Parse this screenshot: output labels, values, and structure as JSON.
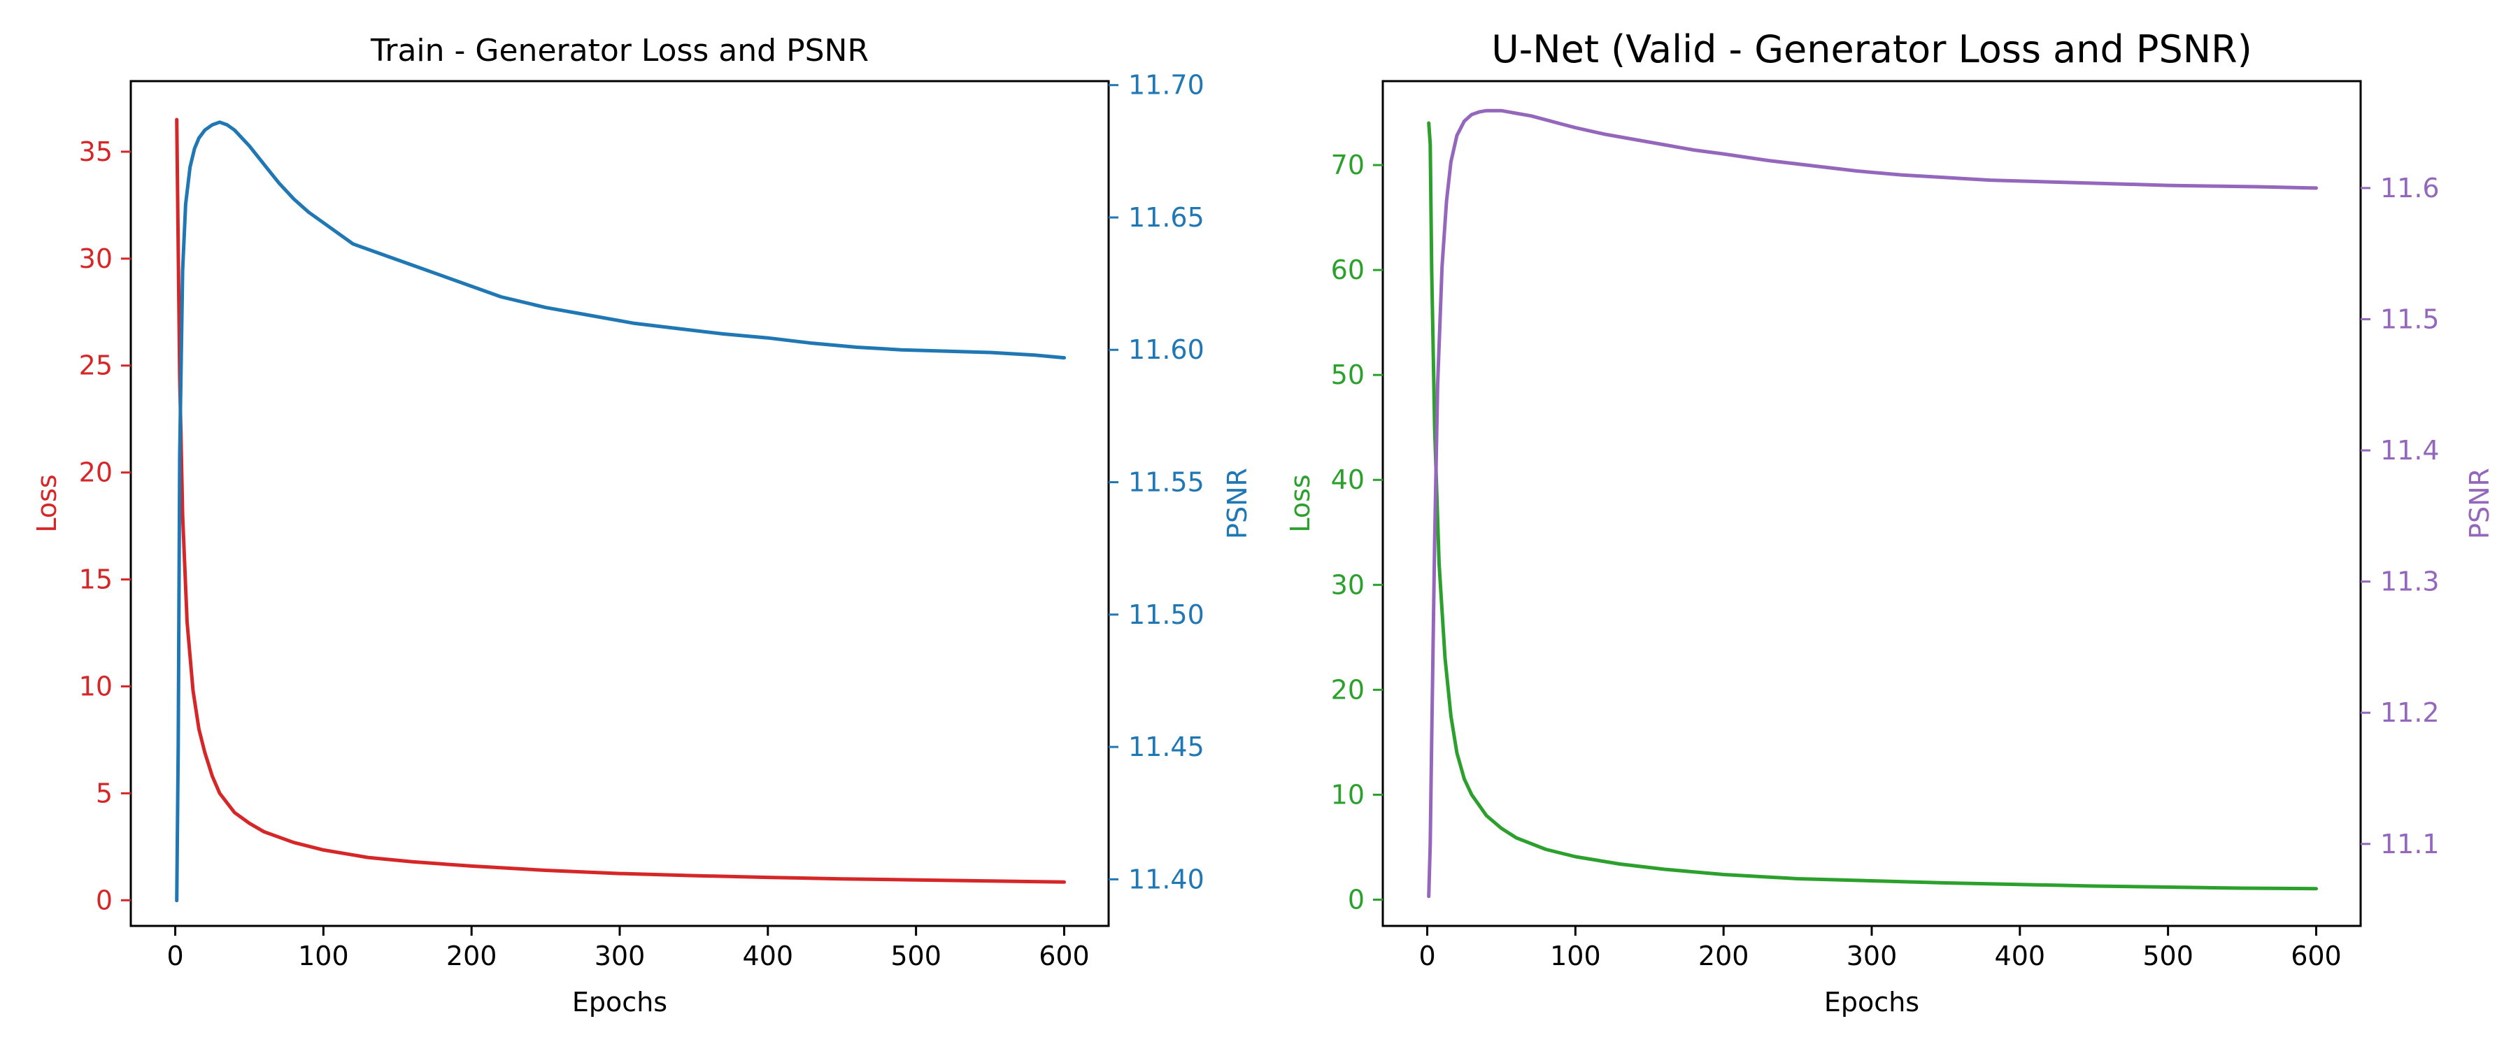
{
  "chart_data": [
    {
      "type": "line",
      "title": "Train - Generator Loss and PSNR",
      "xlabel": "Epochs",
      "ylabel": "Loss",
      "y2label": "PSNR",
      "xlim": [
        -30,
        630
      ],
      "ylim": [
        -1.2,
        38.3
      ],
      "y2lim": [
        11.3824,
        11.7015
      ],
      "xticks": [
        0,
        100,
        200,
        300,
        400,
        500,
        600
      ],
      "yticks": [
        0,
        5,
        10,
        15,
        20,
        25,
        30,
        35
      ],
      "y2ticks": [
        11.4,
        11.45,
        11.5,
        11.55,
        11.6,
        11.65,
        11.7
      ],
      "y2tick_labels": [
        "11.40",
        "11.45",
        "11.50",
        "11.55",
        "11.60",
        "11.65",
        "11.70"
      ],
      "left_color": "#d62728",
      "right_color": "#1f77b4",
      "series": [
        {
          "axis": "left",
          "color": "#d62728",
          "x": [
            1,
            3,
            5,
            8,
            12,
            16,
            20,
            25,
            30,
            40,
            50,
            60,
            80,
            100,
            130,
            160,
            200,
            250,
            300,
            350,
            400,
            450,
            500,
            550,
            600
          ],
          "y": [
            36.5,
            24.5,
            18.0,
            13.0,
            9.8,
            8.0,
            6.9,
            5.8,
            5.0,
            4.1,
            3.6,
            3.2,
            2.7,
            2.35,
            2.0,
            1.8,
            1.6,
            1.4,
            1.25,
            1.15,
            1.07,
            1.0,
            0.95,
            0.9,
            0.85
          ]
        },
        {
          "axis": "right",
          "color": "#1f77b4",
          "x": [
            1,
            2,
            3,
            5,
            7,
            10,
            13,
            16,
            20,
            25,
            30,
            35,
            40,
            50,
            60,
            70,
            80,
            90,
            100,
            120,
            140,
            160,
            180,
            200,
            220,
            250,
            280,
            310,
            340,
            370,
            400,
            430,
            460,
            490,
            520,
            550,
            580,
            600
          ],
          "y": [
            11.392,
            11.45,
            11.56,
            11.63,
            11.655,
            11.669,
            11.676,
            11.68,
            11.683,
            11.685,
            11.686,
            11.685,
            11.683,
            11.677,
            11.67,
            11.663,
            11.657,
            11.652,
            11.648,
            11.64,
            11.636,
            11.632,
            11.628,
            11.624,
            11.62,
            11.616,
            11.613,
            11.61,
            11.608,
            11.606,
            11.6045,
            11.6025,
            11.601,
            11.6,
            11.5995,
            11.599,
            11.598,
            11.597
          ]
        }
      ]
    },
    {
      "type": "line",
      "title": "U-Net (Valid - Generator Loss and PSNR)",
      "xlabel": "Epochs",
      "ylabel": "Loss",
      "y2label": "PSNR",
      "xlim": [
        -30,
        630
      ],
      "ylim": [
        -2.5,
        78.0
      ],
      "y2lim": [
        11.0375,
        11.6815
      ],
      "xticks": [
        0,
        100,
        200,
        300,
        400,
        500,
        600
      ],
      "yticks": [
        0,
        10,
        20,
        30,
        40,
        50,
        60,
        70
      ],
      "y2ticks": [
        11.1,
        11.2,
        11.3,
        11.4,
        11.5,
        11.6
      ],
      "y2tick_labels": [
        "11.1",
        "11.2",
        "11.3",
        "11.4",
        "11.5",
        "11.6"
      ],
      "left_color": "#2ca02c",
      "right_color": "#9467bd",
      "series": [
        {
          "axis": "left",
          "color": "#2ca02c",
          "x": [
            1,
            2,
            3,
            5,
            8,
            12,
            16,
            20,
            25,
            30,
            40,
            50,
            60,
            80,
            100,
            130,
            160,
            200,
            250,
            300,
            350,
            400,
            450,
            500,
            550,
            600
          ],
          "y": [
            74.0,
            72.0,
            60.0,
            45.0,
            32.0,
            23.0,
            17.5,
            14.0,
            11.5,
            10.0,
            8.0,
            6.8,
            5.9,
            4.8,
            4.1,
            3.4,
            2.9,
            2.4,
            2.0,
            1.8,
            1.6,
            1.45,
            1.3,
            1.2,
            1.1,
            1.05
          ]
        },
        {
          "axis": "right",
          "color": "#9467bd",
          "x": [
            1,
            2,
            3,
            5,
            7,
            10,
            13,
            16,
            20,
            25,
            30,
            35,
            40,
            50,
            60,
            70,
            80,
            90,
            100,
            120,
            140,
            160,
            180,
            200,
            230,
            260,
            290,
            320,
            350,
            380,
            410,
            440,
            470,
            500,
            530,
            560,
            600
          ],
          "y": [
            11.06,
            11.1,
            11.18,
            11.33,
            11.45,
            11.54,
            11.59,
            11.62,
            11.64,
            11.651,
            11.656,
            11.658,
            11.659,
            11.659,
            11.657,
            11.655,
            11.652,
            11.649,
            11.646,
            11.641,
            11.637,
            11.633,
            11.629,
            11.626,
            11.621,
            11.617,
            11.613,
            11.61,
            11.608,
            11.606,
            11.605,
            11.604,
            11.603,
            11.602,
            11.6015,
            11.601,
            11.6
          ]
        }
      ]
    }
  ]
}
